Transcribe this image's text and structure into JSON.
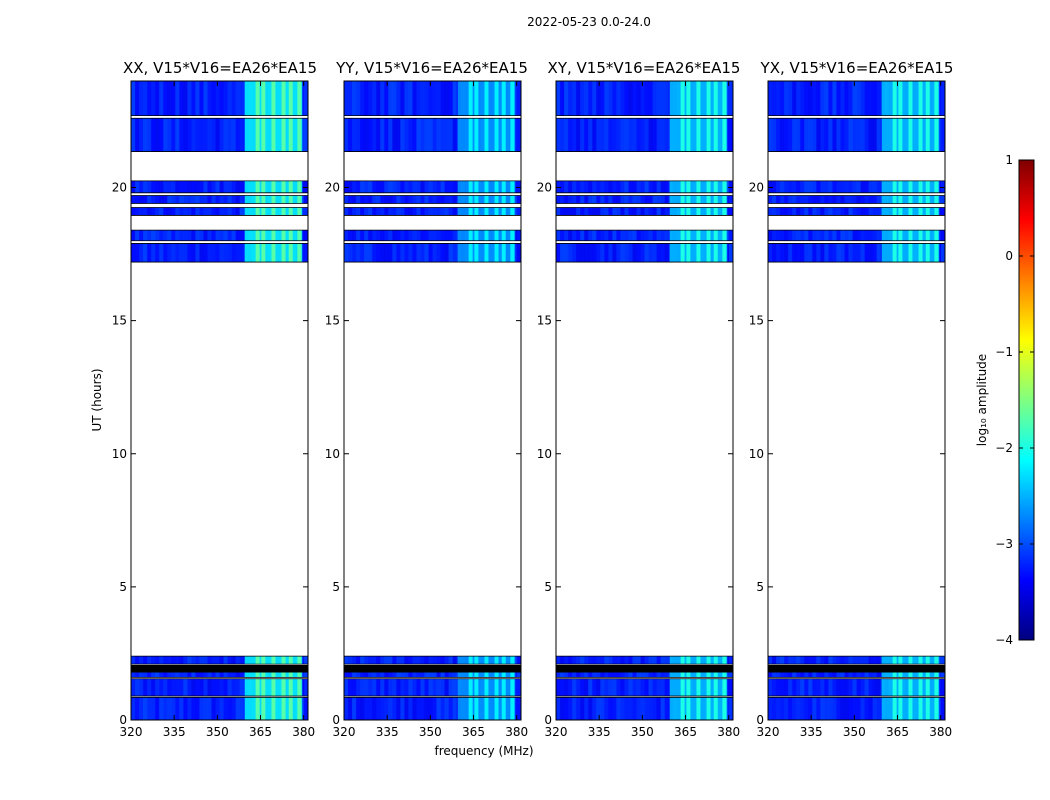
{
  "figure": {
    "suptitle": "2022-05-23 0.0-24.0",
    "xlabel": "frequency (MHz)",
    "ylabel": "UT (hours)"
  },
  "colorbar": {
    "label": "log₁₀ amplitude",
    "min": -4,
    "max": 1,
    "ticks": [
      -4,
      -3,
      -2,
      -1,
      0,
      1
    ],
    "tick_labels": [
      "−4",
      "−3",
      "−2",
      "−1",
      "0",
      "1"
    ],
    "colors": [
      "#00007f",
      "#0000ff",
      "#0080ff",
      "#00ffff",
      "#80ff80",
      "#ffff00",
      "#ff8000",
      "#ff0000",
      "#7f0000"
    ]
  },
  "chart_data": [
    {
      "type": "heatmap",
      "title": "XX, V15*V16=EA26*EA15",
      "xlabel": "",
      "ylabel": "UT (hours)",
      "xlim": [
        320,
        381.5
      ],
      "ylim": [
        0,
        24
      ],
      "xticks": [
        320,
        335,
        350,
        365,
        380
      ],
      "yticks": [
        0,
        5,
        10,
        15,
        20
      ],
      "ytick_labels": [
        "0",
        "5",
        "10",
        "15",
        "20"
      ],
      "rfi_band_mhz": [
        359.5,
        379.5
      ],
      "bright_channels_mhz": [
        364,
        366,
        369.5,
        373,
        375.5,
        378.5
      ],
      "data_blocks_hours": [
        [
          0,
          0.85
        ],
        [
          0.9,
          1.55
        ],
        [
          1.6,
          1.8
        ],
        [
          1.8,
          2.05
        ],
        [
          2.1,
          2.4
        ],
        [
          17.2,
          17.9
        ],
        [
          18.0,
          18.4
        ],
        [
          18.95,
          19.25
        ],
        [
          19.4,
          19.7
        ],
        [
          19.8,
          20.25
        ],
        [
          21.35,
          22.6
        ],
        [
          22.7,
          24
        ]
      ],
      "band_level_log10": -1.7
    },
    {
      "type": "heatmap",
      "title": "YY, V15*V16=EA26*EA15",
      "xlabel": "frequency (MHz)",
      "ylabel": "",
      "xlim": [
        320,
        381.5
      ],
      "ylim": [
        0,
        24
      ],
      "xticks": [
        320,
        335,
        350,
        365,
        380
      ],
      "yticks": [
        0,
        5,
        10,
        15,
        20
      ],
      "ytick_labels": [
        "0",
        "5",
        "10",
        "15",
        "20"
      ],
      "rfi_band_mhz": [
        359.5,
        379.5
      ],
      "bright_channels_mhz": [
        364,
        366,
        369.5,
        373,
        375.5,
        378.5
      ],
      "data_blocks_hours": [
        [
          0,
          0.85
        ],
        [
          0.9,
          1.55
        ],
        [
          1.6,
          1.8
        ],
        [
          1.8,
          2.05
        ],
        [
          2.1,
          2.4
        ],
        [
          17.2,
          17.9
        ],
        [
          18.0,
          18.4
        ],
        [
          18.95,
          19.25
        ],
        [
          19.4,
          19.7
        ],
        [
          19.8,
          20.25
        ],
        [
          21.35,
          22.6
        ],
        [
          22.7,
          24
        ]
      ],
      "band_level_log10": -2.2
    },
    {
      "type": "heatmap",
      "title": "XY, V15*V16=EA26*EA15",
      "xlabel": "",
      "ylabel": "",
      "xlim": [
        320,
        381.5
      ],
      "ylim": [
        0,
        24
      ],
      "xticks": [
        320,
        335,
        350,
        365,
        380
      ],
      "yticks": [
        0,
        5,
        10,
        15,
        20
      ],
      "ytick_labels": [
        "0",
        "5",
        "10",
        "15",
        "20"
      ],
      "rfi_band_mhz": [
        359.5,
        379.5
      ],
      "bright_channels_mhz": [
        364,
        366,
        369.5,
        373,
        375.5,
        378.5
      ],
      "data_blocks_hours": [
        [
          0,
          0.85
        ],
        [
          0.9,
          1.55
        ],
        [
          1.6,
          1.8
        ],
        [
          1.8,
          2.05
        ],
        [
          2.1,
          2.4
        ],
        [
          17.2,
          17.9
        ],
        [
          18.0,
          18.4
        ],
        [
          18.95,
          19.25
        ],
        [
          19.4,
          19.7
        ],
        [
          19.8,
          20.25
        ],
        [
          21.35,
          22.6
        ],
        [
          22.7,
          24
        ]
      ],
      "band_level_log10": -2.0
    },
    {
      "type": "heatmap",
      "title": "YX, V15*V16=EA26*EA15",
      "xlabel": "",
      "ylabel": "",
      "xlim": [
        320,
        381.5
      ],
      "ylim": [
        0,
        24
      ],
      "xticks": [
        320,
        335,
        350,
        365,
        380
      ],
      "yticks": [
        0,
        5,
        10,
        15,
        20
      ],
      "ytick_labels": [
        "0",
        "5",
        "10",
        "15",
        "20"
      ],
      "rfi_band_mhz": [
        359.5,
        379.5
      ],
      "bright_channels_mhz": [
        364,
        366,
        369.5,
        373,
        375.5,
        378.5
      ],
      "data_blocks_hours": [
        [
          0,
          0.85
        ],
        [
          0.9,
          1.55
        ],
        [
          1.6,
          1.8
        ],
        [
          1.8,
          2.05
        ],
        [
          2.1,
          2.4
        ],
        [
          17.2,
          17.9
        ],
        [
          18.0,
          18.4
        ],
        [
          18.95,
          19.25
        ],
        [
          19.4,
          19.7
        ],
        [
          19.8,
          20.25
        ],
        [
          21.35,
          22.6
        ],
        [
          22.7,
          24
        ]
      ],
      "band_level_log10": -2.0
    }
  ]
}
